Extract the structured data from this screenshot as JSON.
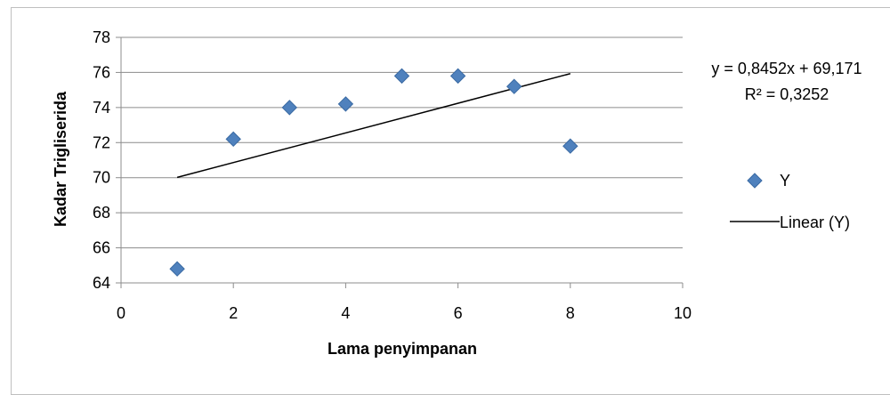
{
  "chart_data": {
    "type": "scatter",
    "xlabel": "Lama penyimpanan",
    "ylabel": "Kadar Trigliserida",
    "xlim": [
      0,
      10
    ],
    "ylim": [
      64,
      78
    ],
    "x_ticks": [
      "0",
      "2",
      "4",
      "6",
      "8",
      "10"
    ],
    "y_ticks": [
      "64",
      "66",
      "68",
      "70",
      "72",
      "74",
      "76",
      "78"
    ],
    "grid": "horizontal major gridlines",
    "legend_position": "right",
    "series": [
      {
        "name": "Y",
        "marker": "diamond",
        "color": "#4F81BD",
        "points": [
          {
            "x": 1,
            "y": 64.8
          },
          {
            "x": 2,
            "y": 72.2
          },
          {
            "x": 3,
            "y": 74.0
          },
          {
            "x": 4,
            "y": 74.2
          },
          {
            "x": 5,
            "y": 75.8
          },
          {
            "x": 6,
            "y": 75.8
          },
          {
            "x": 7,
            "y": 75.2
          },
          {
            "x": 8,
            "y": 71.8
          }
        ]
      }
    ],
    "trendline": {
      "name": "Linear (Y)",
      "slope": 0.8452,
      "intercept": 69.171,
      "x_range": [
        1,
        8
      ],
      "color": "#000000",
      "equation": "y = 0,8452x + 69,171",
      "r_squared": "R² = 0,3252"
    }
  }
}
